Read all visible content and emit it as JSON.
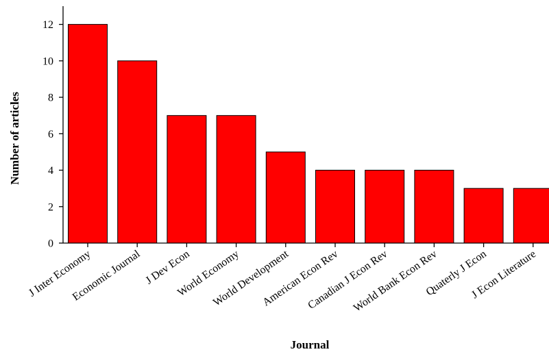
{
  "chart_data": {
    "type": "bar",
    "categories": [
      "J Inter Economy",
      "Economic Journal",
      "J Dev Econ",
      "World Economy",
      "World Development",
      "American Econ Rev",
      "Canadian J Econ Rev",
      "World Bank Econ Rev",
      "Quaterly J Econ",
      "J Econ Literature"
    ],
    "values": [
      12,
      10,
      7,
      7,
      5,
      4,
      4,
      4,
      3,
      3
    ],
    "title": "",
    "xlabel": "Journal",
    "ylabel": "Number of articles",
    "ylim": [
      0,
      13
    ],
    "yticks": [
      0,
      2,
      4,
      6,
      8,
      10,
      12
    ],
    "bar_color": "#ff0000",
    "grid": false,
    "legend": "none"
  }
}
